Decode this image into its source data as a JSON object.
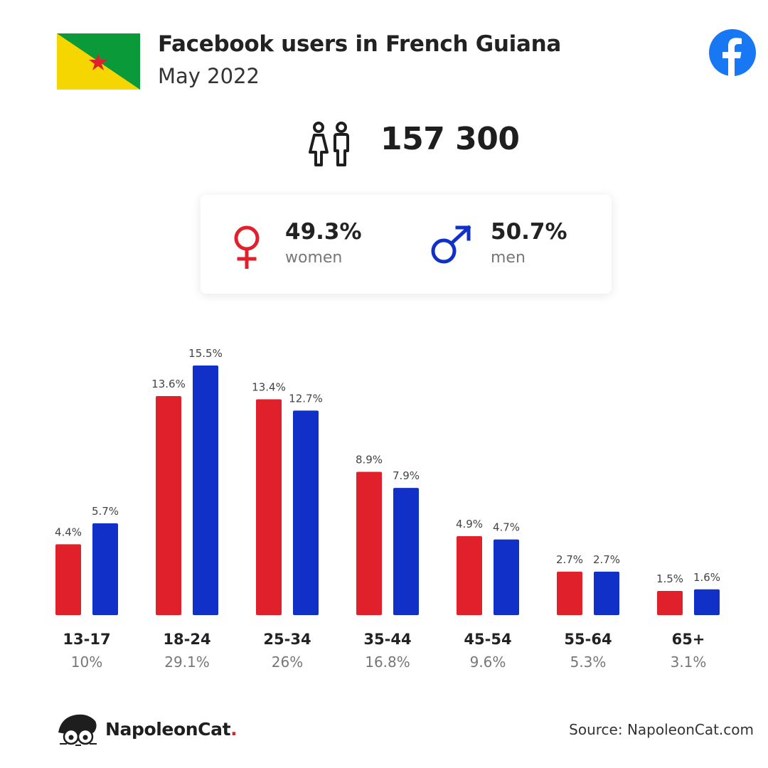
{
  "header": {
    "title": "Facebook users in French Guiana",
    "subtitle": "May 2022",
    "flag_icon": "french-guiana-flag",
    "logo_icon": "facebook-logo-icon"
  },
  "summary": {
    "total": "157 300",
    "icon": "people-icon"
  },
  "gender": {
    "female": {
      "pct": "49.3%",
      "label": "women",
      "icon": "female-symbol-icon",
      "color": "#e0202a"
    },
    "male": {
      "pct": "50.7%",
      "label": "men",
      "icon": "male-symbol-icon",
      "color": "#1030c8"
    }
  },
  "chart_data": {
    "type": "bar",
    "categories": [
      "13-17",
      "18-24",
      "25-34",
      "35-44",
      "45-54",
      "55-64",
      "65+"
    ],
    "category_totals": [
      "10%",
      "29.1%",
      "26%",
      "16.8%",
      "9.6%",
      "5.3%",
      "3.1%"
    ],
    "series": [
      {
        "values": [
          4.4,
          13.6,
          13.4,
          8.9,
          4.9,
          2.7,
          1.5
        ],
        "labels": [
          "4.4%",
          "13.6%",
          "13.4%",
          "8.9%",
          "4.9%",
          "2.7%",
          "1.5%"
        ],
        "color": "#e0202a"
      },
      {
        "values": [
          5.7,
          15.5,
          12.7,
          7.9,
          4.7,
          2.7,
          1.6
        ],
        "labels": [
          "5.7%",
          "15.5%",
          "12.7%",
          "7.9%",
          "4.7%",
          "2.7%",
          "1.6%"
        ],
        "color": "#1030c8"
      }
    ],
    "ylim": [
      0,
      15.5
    ],
    "grid": false,
    "legend": "none"
  },
  "footer": {
    "brand": "NapoleonCat",
    "brand_dot": ".",
    "brand_icon": "napoleoncat-logo-icon",
    "source": "Source: NapoleonCat.com"
  }
}
